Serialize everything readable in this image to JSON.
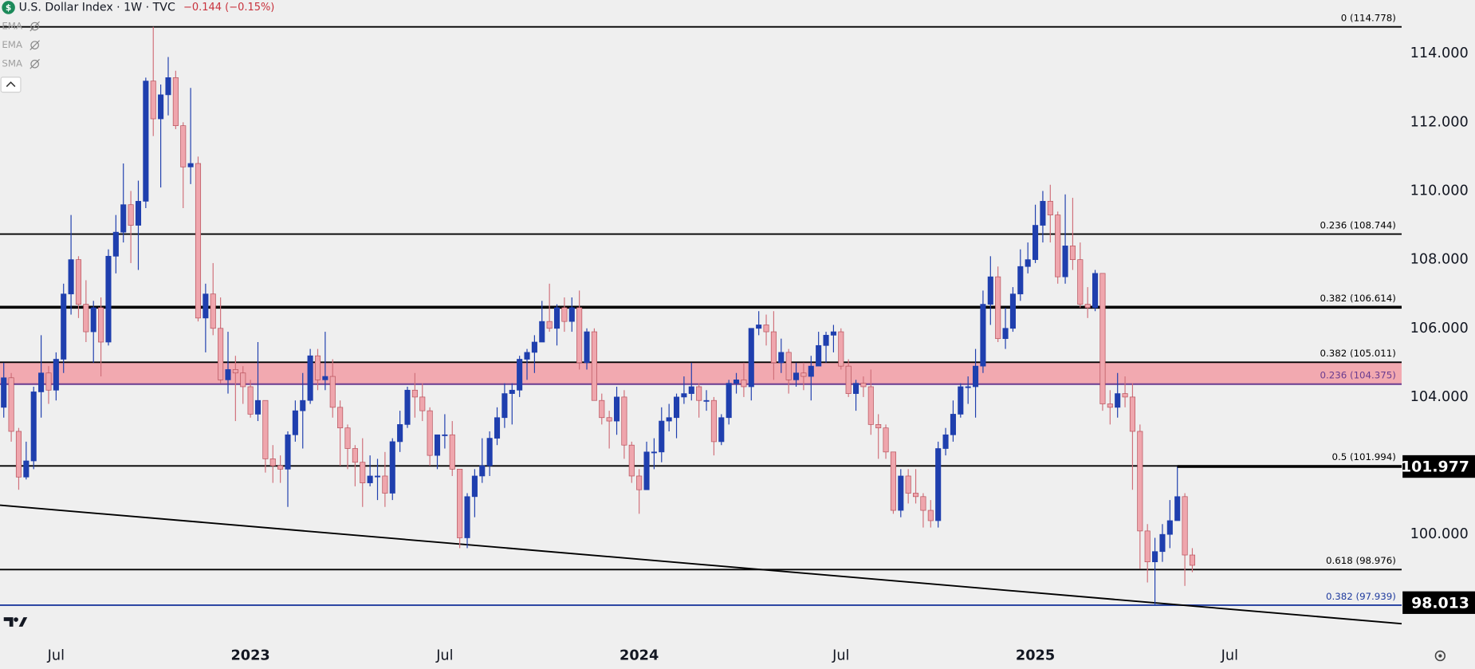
{
  "chart_data": {
    "type": "candlestick",
    "title": "U.S. Dollar Index · 1W · TVC",
    "change": "−0.144 (−0.15%)",
    "indicators": [
      "EMA",
      "EMA",
      "SMA"
    ],
    "up_color": "#1f3fae",
    "down_color": "#efa6ad",
    "categories": [
      null,
      null,
      null,
      null,
      null,
      null,
      null,
      "Jul",
      null,
      null,
      null,
      null,
      null,
      null,
      null,
      null,
      null,
      null,
      null,
      null,
      null,
      null,
      null,
      null,
      null,
      null,
      null,
      null,
      null,
      null,
      null,
      null,
      null,
      "2023",
      null,
      null,
      null,
      null,
      null,
      null,
      null,
      null,
      null,
      null,
      null,
      null,
      null,
      null,
      null,
      null,
      null,
      null,
      null,
      null,
      null,
      null,
      null,
      null,
      null,
      "Jul",
      null,
      null,
      null,
      null,
      null,
      null,
      null,
      null,
      null,
      null,
      null,
      null,
      null,
      null,
      null,
      null,
      null,
      null,
      null,
      null,
      null,
      null,
      null,
      null,
      null,
      "2024",
      null,
      null,
      null,
      null,
      null,
      null,
      null,
      null,
      null,
      null,
      null,
      null,
      null,
      null,
      null,
      null,
      null,
      null,
      null,
      null,
      null,
      null,
      null,
      null,
      null,
      null,
      "Jul",
      null,
      null,
      null,
      null,
      null,
      null,
      null,
      null,
      null,
      null,
      null,
      null,
      null,
      null,
      null,
      null,
      null,
      null,
      null,
      null,
      null,
      null,
      null,
      null,
      null,
      "2025",
      null,
      null,
      null,
      null,
      null,
      null,
      null,
      null,
      null,
      null,
      null,
      null,
      null,
      null,
      null,
      null,
      null,
      null,
      null,
      null,
      null,
      null,
      null,
      null,
      null,
      "Jul",
      null,
      null,
      null,
      null,
      null,
      null,
      null,
      null,
      null,
      null,
      null,
      null,
      null,
      null,
      null,
      null,
      null,
      null,
      null,
      null,
      null,
      null,
      null
    ],
    "open": [
      103.7,
      104.56,
      103.0,
      101.67,
      102.14,
      104.15,
      104.7,
      104.2,
      105.1,
      107.0,
      108.0,
      106.7,
      105.9,
      106.6,
      105.6,
      108.1,
      108.8,
      109.6,
      109.0,
      109.7,
      113.2,
      112.1,
      112.8,
      113.3,
      111.9,
      110.7,
      110.8,
      106.3,
      107.0,
      106.0,
      104.5,
      104.8,
      104.7,
      104.3,
      103.5,
      103.9,
      102.2,
      102.0,
      101.9,
      102.9,
      103.6,
      103.9,
      105.2,
      104.5,
      104.6,
      103.7,
      103.1,
      102.5,
      102.1,
      101.5,
      101.7,
      101.7,
      101.2,
      102.7,
      103.2,
      104.2,
      104.0,
      103.6,
      102.3,
      102.9,
      102.9,
      101.9,
      99.9,
      101.1,
      101.7,
      102.0,
      102.8,
      103.4,
      104.1,
      104.2,
      105.1,
      105.3,
      105.6,
      106.2,
      106.0,
      106.6,
      106.2,
      106.6,
      105.0,
      105.9,
      103.9,
      103.4,
      103.3,
      104.0,
      102.6,
      101.7,
      101.3,
      102.4,
      102.4,
      103.3,
      103.4,
      104.0,
      104.1,
      104.3,
      103.9,
      103.9,
      102.7,
      103.4,
      104.4,
      104.5,
      104.3,
      106.0,
      106.1,
      105.9,
      105.0,
      105.3,
      104.5,
      104.7,
      104.6,
      104.9,
      105.5,
      105.8,
      105.9,
      104.9,
      104.1,
      104.4,
      104.3,
      103.2,
      103.1,
      102.4,
      100.7,
      101.7,
      101.2,
      101.1,
      100.7,
      100.4,
      102.5,
      102.9,
      103.5,
      104.3,
      104.3,
      104.9,
      106.7,
      107.5,
      105.7,
      106.0,
      107.0,
      107.8,
      108.0,
      109.0,
      109.7,
      109.3,
      107.5,
      108.4,
      108.0,
      106.7,
      106.6,
      107.6,
      103.8,
      103.7,
      104.1,
      104.0,
      103.0,
      100.1,
      99.2,
      99.5,
      100.0,
      100.4,
      101.1,
      99.4,
      null,
      null,
      null,
      null,
      null,
      null,
      null,
      null,
      null,
      null,
      null,
      null,
      null,
      null,
      null,
      null,
      null,
      null,
      null,
      null,
      null,
      null,
      null,
      null,
      null,
      null,
      null,
      null
    ],
    "high": [
      105.0,
      104.7,
      103.1,
      102.7,
      104.3,
      105.8,
      104.9,
      105.3,
      107.3,
      109.3,
      108.1,
      107.4,
      106.8,
      106.9,
      108.3,
      109.3,
      110.8,
      110.0,
      110.3,
      113.3,
      114.778,
      113.1,
      113.9,
      113.5,
      112.0,
      113.0,
      111.0,
      107.3,
      107.9,
      106.9,
      105.9,
      105.2,
      104.9,
      104.5,
      105.6,
      103.9,
      102.6,
      102.3,
      103.0,
      103.9,
      104.7,
      105.4,
      105.4,
      105.9,
      105.1,
      103.9,
      103.2,
      102.6,
      102.8,
      102.3,
      102.2,
      102.4,
      102.8,
      103.6,
      104.3,
      104.7,
      104.4,
      103.7,
      102.9,
      103.5,
      103.3,
      101.9,
      101.2,
      101.9,
      102.8,
      103.0,
      103.7,
      104.4,
      104.4,
      105.2,
      105.4,
      105.8,
      106.8,
      107.3,
      106.7,
      106.9,
      106.9,
      107.1,
      106.0,
      106.0,
      104.1,
      103.6,
      104.3,
      104.2,
      102.7,
      101.9,
      102.7,
      102.8,
      103.7,
      103.8,
      104.1,
      104.6,
      105.0,
      104.4,
      104.2,
      104.0,
      103.5,
      104.5,
      104.7,
      105.0,
      106.0,
      106.5,
      106.4,
      106.5,
      105.7,
      105.4,
      105.0,
      105.0,
      105.2,
      105.9,
      105.9,
      106.1,
      106.0,
      105.1,
      104.5,
      104.6,
      104.8,
      103.5,
      103.2,
      102.4,
      101.9,
      101.9,
      101.9,
      101.2,
      101.0,
      102.7,
      103.1,
      103.9,
      104.4,
      104.6,
      105.4,
      107.1,
      108.1,
      107.8,
      106.6,
      107.2,
      108.3,
      108.5,
      109.6,
      110.0,
      110.18,
      109.4,
      109.9,
      109.8,
      108.5,
      107.2,
      107.7,
      107.6,
      104.2,
      104.7,
      104.6,
      104.4,
      103.2,
      100.3,
      99.9,
      100.3,
      101.0,
      101.98,
      101.2,
      99.6,
      null,
      null,
      null,
      null,
      null,
      null,
      null,
      null,
      null,
      null,
      null,
      null,
      null,
      null,
      null,
      null,
      null,
      null,
      null,
      null,
      null,
      null,
      null,
      null,
      null,
      null,
      null,
      null
    ],
    "low": [
      103.4,
      102.7,
      101.3,
      101.6,
      101.9,
      103.4,
      103.8,
      103.9,
      104.7,
      106.4,
      106.3,
      105.6,
      105.0,
      104.6,
      105.5,
      107.6,
      108.5,
      107.9,
      107.7,
      109.5,
      111.6,
      110.1,
      112.2,
      111.8,
      109.5,
      110.2,
      106.2,
      105.3,
      105.8,
      104.4,
      104.1,
      103.3,
      103.8,
      103.4,
      103.3,
      101.8,
      101.5,
      101.5,
      100.8,
      102.7,
      102.5,
      103.8,
      104.2,
      104.2,
      103.4,
      102.0,
      101.9,
      101.4,
      100.8,
      101.4,
      101.0,
      100.8,
      101.0,
      102.4,
      103.1,
      103.4,
      103.3,
      102.0,
      101.9,
      102.5,
      101.7,
      99.6,
      99.6,
      100.5,
      101.5,
      101.7,
      102.6,
      103.1,
      103.2,
      104.0,
      104.5,
      104.7,
      105.6,
      105.9,
      105.5,
      105.9,
      105.9,
      104.8,
      104.8,
      103.9,
      103.2,
      102.5,
      102.9,
      102.2,
      101.5,
      100.6,
      101.3,
      101.9,
      102.1,
      103.0,
      102.8,
      103.8,
      103.9,
      103.4,
      103.6,
      102.3,
      102.6,
      103.2,
      104.1,
      104.0,
      103.9,
      105.8,
      105.5,
      104.5,
      104.7,
      104.1,
      104.3,
      104.2,
      103.9,
      104.9,
      105.0,
      105.3,
      104.8,
      104.0,
      103.6,
      104.0,
      102.9,
      102.2,
      102.2,
      100.6,
      100.5,
      100.9,
      100.9,
      100.2,
      100.2,
      100.2,
      102.3,
      102.7,
      103.4,
      103.8,
      103.4,
      104.7,
      106.1,
      105.6,
      105.4,
      105.9,
      106.8,
      107.6,
      107.9,
      108.5,
      108.5,
      107.3,
      107.3,
      107.7,
      106.6,
      106.3,
      106.5,
      103.6,
      103.2,
      103.4,
      103.7,
      101.3,
      99.0,
      98.6,
      97.92,
      99.2,
      99.6,
      100.4,
      98.5,
      98.9,
      null,
      null,
      null,
      null,
      null,
      null,
      null,
      null,
      null,
      null,
      null,
      null,
      null,
      null,
      null,
      null,
      null,
      null,
      null,
      null,
      null,
      null,
      null,
      null,
      null,
      null,
      null,
      null
    ],
    "close": [
      104.56,
      103.0,
      101.67,
      102.14,
      104.15,
      104.7,
      104.2,
      105.1,
      107.0,
      108.0,
      106.7,
      105.9,
      106.6,
      105.6,
      108.1,
      108.8,
      109.6,
      109.0,
      109.7,
      113.2,
      112.1,
      112.8,
      113.3,
      111.9,
      110.7,
      110.8,
      106.3,
      107.0,
      106.0,
      104.5,
      104.8,
      104.7,
      104.3,
      103.5,
      103.9,
      102.2,
      102.0,
      101.9,
      102.9,
      103.6,
      103.9,
      105.2,
      104.5,
      104.6,
      103.7,
      103.1,
      102.5,
      102.1,
      101.5,
      101.7,
      101.7,
      101.2,
      102.7,
      103.2,
      104.2,
      104.0,
      103.6,
      102.3,
      102.9,
      102.9,
      101.9,
      99.9,
      101.1,
      101.7,
      102.0,
      102.8,
      103.4,
      104.1,
      104.2,
      105.1,
      105.3,
      105.6,
      106.2,
      106.0,
      106.6,
      106.2,
      106.6,
      105.0,
      105.9,
      103.9,
      103.4,
      103.3,
      104.0,
      102.6,
      101.7,
      101.3,
      102.4,
      102.4,
      103.3,
      103.4,
      104.0,
      104.1,
      104.3,
      103.9,
      103.9,
      102.7,
      103.4,
      104.4,
      104.5,
      104.3,
      106.0,
      106.1,
      105.9,
      105.0,
      105.3,
      104.5,
      104.7,
      104.6,
      104.9,
      105.5,
      105.8,
      105.9,
      104.9,
      104.1,
      104.4,
      104.3,
      103.2,
      103.1,
      102.4,
      100.7,
      101.7,
      101.2,
      101.1,
      100.7,
      100.4,
      102.5,
      102.9,
      103.5,
      104.3,
      104.3,
      104.9,
      106.7,
      107.5,
      105.7,
      106.0,
      107.0,
      107.8,
      108.0,
      109.0,
      109.7,
      109.3,
      107.5,
      108.4,
      108.0,
      106.7,
      106.6,
      107.6,
      103.8,
      103.7,
      104.1,
      104.0,
      103.0,
      100.1,
      99.2,
      99.5,
      100.0,
      100.4,
      101.1,
      99.4,
      99.1,
      null,
      null,
      null,
      null,
      null,
      null,
      null,
      null,
      null,
      null,
      null,
      null,
      null,
      null,
      null,
      null,
      null,
      null,
      null,
      null,
      null,
      null,
      null,
      null,
      null,
      null,
      null,
      null
    ],
    "ylim": [
      96.93,
      115.56
    ],
    "yticks": [
      {
        "value": 100,
        "label": "100.000"
      },
      {
        "value": 104,
        "label": "104.000"
      },
      {
        "value": 106,
        "label": "106.000"
      },
      {
        "value": 108,
        "label": "108.000"
      },
      {
        "value": 110,
        "label": "110.000"
      },
      {
        "value": 112,
        "label": "112.000"
      },
      {
        "value": 114,
        "label": "114.000"
      }
    ],
    "levels": [
      {
        "label": "0 (114.778)",
        "value": 114.778,
        "color": "#000000"
      },
      {
        "label": "0.236 (108.744)",
        "value": 108.744,
        "color": "#000000"
      },
      {
        "label": "0.382 (106.614)",
        "value": 106.614,
        "color": "#000000"
      },
      {
        "label": "0.382 (105.011)",
        "value": 105.011,
        "color": "#000000"
      },
      {
        "label": "0.236 (104.375)",
        "value": 104.375,
        "color": "#6a3b8f"
      },
      {
        "label": "0.5 (101.994)",
        "value": 101.994,
        "color": "#000000"
      },
      {
        "label": "0.618 (98.976)",
        "value": 98.976,
        "color": "#000000"
      },
      {
        "label": "0.382 (97.939)",
        "value": 97.939,
        "color": "#1f3b9e"
      }
    ],
    "zone_color": "#f2a9b0",
    "trendline": [
      100.85,
      97.4
    ],
    "price_markers": [
      101.977,
      98.013
    ]
  }
}
